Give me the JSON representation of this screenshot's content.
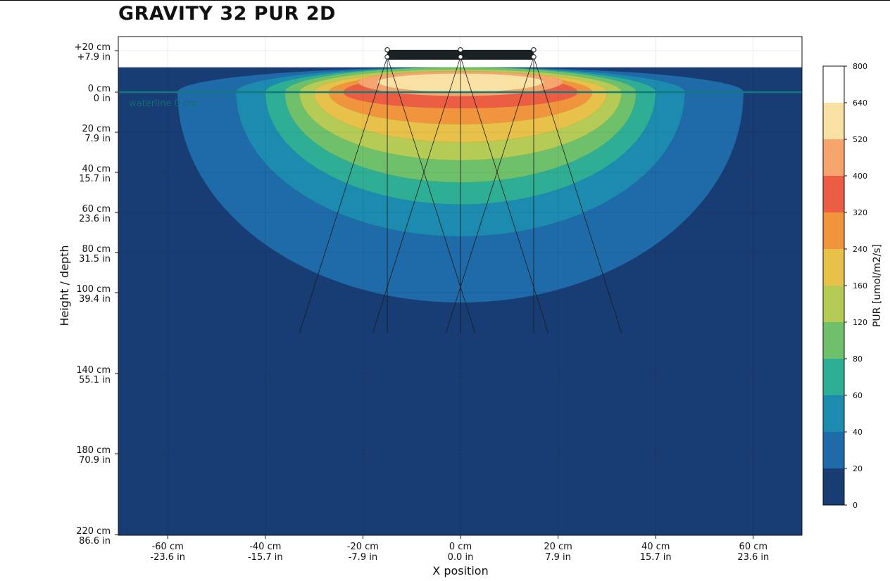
{
  "title": "GRAVITY 32 PUR 2D",
  "chart_data": {
    "type": "heatmap",
    "title": "GRAVITY 32 PUR 2D",
    "xlabel": "X position",
    "ylabel": "Height / depth",
    "colorbar_label": "PUR [umol/m2/s]",
    "xlim_cm": [
      -70,
      70
    ],
    "ylim_cm": [
      -20,
      220
    ],
    "x_ticks": [
      {
        "cm": -60,
        "label1": "-60 cm",
        "label2": "-23.6 in"
      },
      {
        "cm": -40,
        "label1": "-40 cm",
        "label2": "-15.7 in"
      },
      {
        "cm": -20,
        "label1": "-20 cm",
        "label2": "-7.9 in"
      },
      {
        "cm": 0,
        "label1": "0 cm",
        "label2": "0.0 in"
      },
      {
        "cm": 20,
        "label1": "20 cm",
        "label2": "7.9 in"
      },
      {
        "cm": 40,
        "label1": "40 cm",
        "label2": "15.7 in"
      },
      {
        "cm": 60,
        "label1": "60 cm",
        "label2": "23.6 in"
      }
    ],
    "y_ticks": [
      {
        "cm": -20,
        "label1": "+20 cm",
        "label2": "+7.9 in"
      },
      {
        "cm": 0,
        "label1": "0 cm",
        "label2": "0 in"
      },
      {
        "cm": 20,
        "label1": "20 cm",
        "label2": "7.9 in"
      },
      {
        "cm": 40,
        "label1": "40 cm",
        "label2": "15.7 in"
      },
      {
        "cm": 60,
        "label1": "60 cm",
        "label2": "23.6 in"
      },
      {
        "cm": 80,
        "label1": "80 cm",
        "label2": "31.5 in"
      },
      {
        "cm": 100,
        "label1": "100 cm",
        "label2": "39.4 in"
      },
      {
        "cm": 140,
        "label1": "140 cm",
        "label2": "55.1 in"
      },
      {
        "cm": 180,
        "label1": "180 cm",
        "label2": "70.9 in"
      },
      {
        "cm": 220,
        "label1": "220 cm",
        "label2": "86.6 in"
      }
    ],
    "waterline_label": "waterline 0 cm",
    "waterline_depth_cm": 0,
    "water_surface_cm": -12,
    "fixture": {
      "x_start_cm": -15,
      "x_end_cm": 15,
      "height_cm": -17,
      "emitter_x_cm": [
        -15,
        0,
        15
      ]
    },
    "beam_lines": [
      {
        "x0": -15,
        "x1": -33
      },
      {
        "x0": -15,
        "x1": -15
      },
      {
        "x0": -15,
        "x1": 3
      },
      {
        "x0": 0,
        "x1": -18
      },
      {
        "x0": 0,
        "x1": 0
      },
      {
        "x0": 0,
        "x1": 18
      },
      {
        "x0": 15,
        "x1": -3
      },
      {
        "x0": 15,
        "x1": 15
      },
      {
        "x0": 15,
        "x1": 33
      }
    ],
    "beam_end_depth_cm": 120,
    "contour_levels": [
      0,
      20,
      40,
      60,
      80,
      120,
      160,
      240,
      320,
      400,
      520,
      640,
      800
    ],
    "contour_colors": [
      "#183c74",
      "#1f6aa8",
      "#1d8bb0",
      "#2fae96",
      "#6ec16a",
      "#b5cb55",
      "#e8c14a",
      "#f0953d",
      "#ec5e43",
      "#f5a56d",
      "#f9e0a3",
      "#ffffff"
    ],
    "contours": [
      {
        "level": 20,
        "cx": 0,
        "cy": 0,
        "rx": 58,
        "ry_up": 12,
        "ry_down": 105
      },
      {
        "level": 40,
        "cx": 0,
        "cy": 0,
        "rx": 46,
        "ry_up": 12,
        "ry_down": 72
      },
      {
        "level": 60,
        "cx": 0,
        "cy": 0,
        "rx": 40,
        "ry_up": 12,
        "ry_down": 56
      },
      {
        "level": 80,
        "cx": 0,
        "cy": 0,
        "rx": 36,
        "ry_up": 12,
        "ry_down": 45
      },
      {
        "level": 120,
        "cx": 0,
        "cy": 0,
        "rx": 33,
        "ry_up": 11,
        "ry_down": 34
      },
      {
        "level": 160,
        "cx": 0,
        "cy": 0,
        "rx": 30,
        "ry_up": 10,
        "ry_down": 25
      },
      {
        "level": 240,
        "cx": 0,
        "cy": 0,
        "rx": 27,
        "ry_up": 9,
        "ry_down": 16
      },
      {
        "level": 320,
        "cx": 0,
        "cy": 0,
        "rx": 24,
        "ry_up": 8,
        "ry_down": 8
      },
      {
        "level": 400,
        "cx": 0,
        "cy": -5,
        "rx": 21,
        "ry_up": 5,
        "ry_down": 7
      },
      {
        "level": 520,
        "cx": 0,
        "cy": -5,
        "rx": 17,
        "ry_up": 4,
        "ry_down": 5
      }
    ],
    "colorbar_ticks": [
      0,
      20,
      40,
      60,
      80,
      120,
      160,
      240,
      320,
      400,
      520,
      640,
      800
    ]
  }
}
